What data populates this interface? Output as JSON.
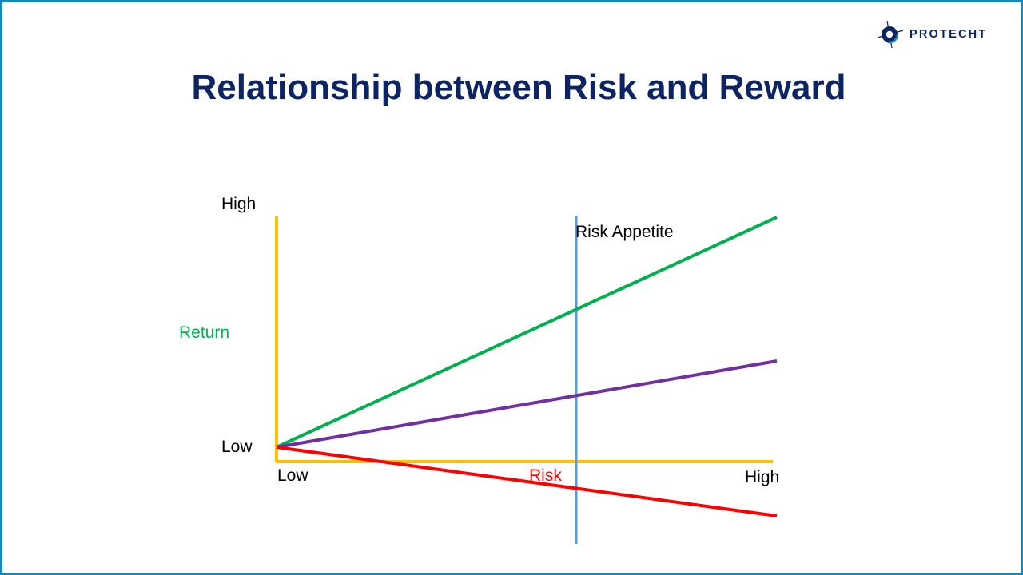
{
  "title": "Relationship between Risk and Reward",
  "logo": {
    "text": "PROTECHT",
    "icon": "protecht-logo-icon",
    "color": "#0c2461"
  },
  "y_axis": {
    "label": "Return",
    "high": "High",
    "low": "Low",
    "label_color": "#00b050",
    "axis_color": "#ffc000"
  },
  "x_axis": {
    "label": "Risk",
    "high": "High",
    "low": "Low",
    "label_color": "#ff0000",
    "axis_color": "#ffc000"
  },
  "risk_appetite": {
    "label": "Risk Appetite",
    "color": "#5b9bd5"
  },
  "lines": [
    {
      "color": "#00b050"
    },
    {
      "color": "#7030a0"
    },
    {
      "color": "#ff0000"
    }
  ],
  "colors": {
    "frame": "#1b87b8",
    "title": "#0c2461"
  }
}
